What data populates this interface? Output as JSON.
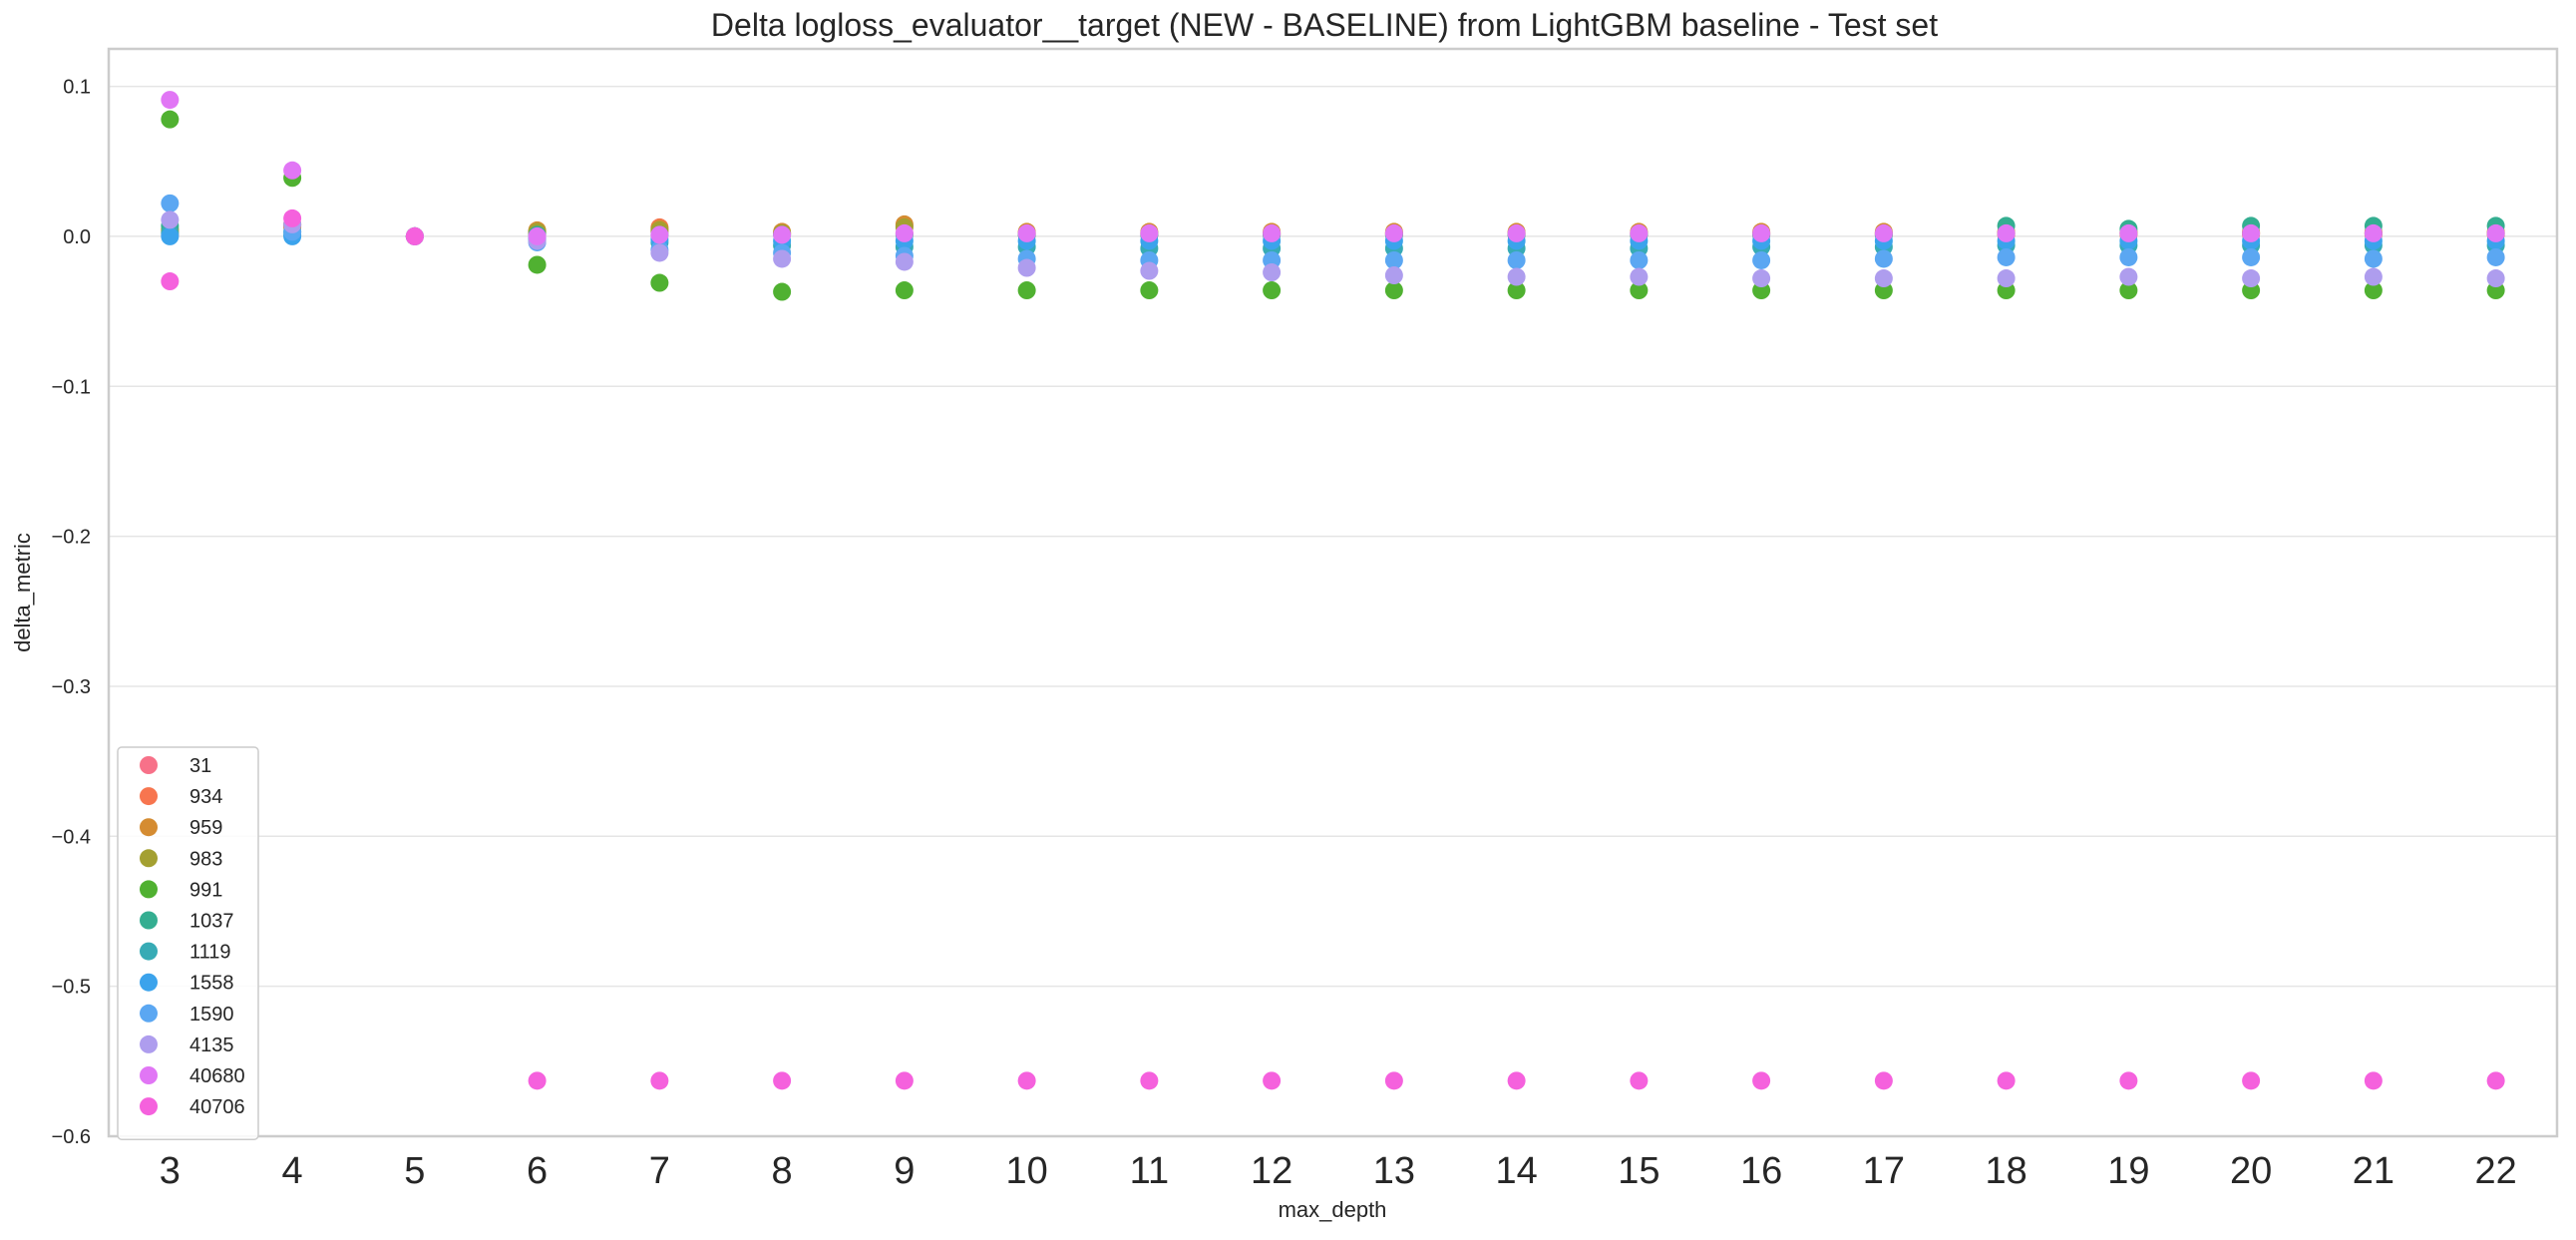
{
  "chart_data": {
    "type": "scatter",
    "title": "Delta logloss_evaluator__target (NEW - BASELINE) from LightGBM baseline - Test set",
    "xlabel": "max_depth",
    "ylabel": "delta_metric",
    "categories": [
      "3",
      "4",
      "5",
      "6",
      "7",
      "8",
      "9",
      "10",
      "11",
      "12",
      "13",
      "14",
      "15",
      "16",
      "17",
      "18",
      "19",
      "20",
      "21",
      "22"
    ],
    "ylim": [
      -0.6,
      0.125
    ],
    "yticks": [
      0.1,
      0.0,
      -0.1,
      -0.2,
      -0.3,
      -0.4,
      -0.5,
      -0.6
    ],
    "ytick_labels": [
      "0.1",
      "0.0",
      "−0.1",
      "−0.2",
      "−0.3",
      "−0.4",
      "−0.5",
      "−0.6"
    ],
    "grid": "horizontal",
    "legend_position": "lower-left",
    "series": [
      {
        "name": "31",
        "color": "#f77189",
        "values": [
          0.001,
          0.008,
          0.0,
          0.002,
          0.003,
          0.002,
          0.002,
          0.001,
          0.001,
          0.001,
          0.001,
          0.001,
          0.001,
          0.001,
          0.001,
          0.001,
          0.001,
          0.001,
          0.001,
          0.001
        ]
      },
      {
        "name": "934",
        "color": "#f7754f",
        "values": [
          0.003,
          0.007,
          0.0,
          0.003,
          0.006,
          0.002,
          0.007,
          0.002,
          0.002,
          0.002,
          0.002,
          0.002,
          0.002,
          0.002,
          0.002,
          0.002,
          0.002,
          0.002,
          0.002,
          0.002
        ]
      },
      {
        "name": "959",
        "color": "#d58c32",
        "values": [
          0.004,
          0.006,
          0.0,
          0.004,
          0.005,
          0.003,
          0.008,
          0.003,
          0.003,
          0.003,
          0.003,
          0.003,
          0.003,
          0.003,
          0.003,
          0.003,
          0.003,
          0.003,
          0.003,
          0.003
        ]
      },
      {
        "name": "983",
        "color": "#a4a031",
        "values": [
          0.005,
          0.008,
          0.0,
          0.003,
          0.004,
          0.002,
          0.006,
          0.002,
          0.002,
          0.002,
          0.002,
          0.002,
          0.002,
          0.002,
          0.002,
          0.002,
          0.002,
          0.002,
          0.002,
          0.002
        ]
      },
      {
        "name": "991",
        "color": "#50b131",
        "values": [
          0.078,
          0.039,
          0.0,
          -0.019,
          -0.031,
          -0.037,
          -0.036,
          -0.036,
          -0.036,
          -0.036,
          -0.036,
          -0.036,
          -0.036,
          -0.036,
          -0.036,
          -0.036,
          -0.036,
          -0.036,
          -0.036,
          -0.036
        ]
      },
      {
        "name": "1037",
        "color": "#34ae91",
        "values": [
          0.007,
          0.003,
          0.0,
          0.001,
          0.001,
          0.001,
          0.001,
          0.001,
          0.001,
          0.001,
          0.001,
          0.001,
          0.001,
          0.001,
          0.001,
          0.007,
          0.005,
          0.007,
          0.007,
          0.007
        ]
      },
      {
        "name": "1119",
        "color": "#37abb5",
        "values": [
          0.002,
          0.001,
          0.0,
          -0.002,
          -0.004,
          -0.006,
          -0.007,
          -0.007,
          -0.008,
          -0.008,
          -0.008,
          -0.008,
          -0.008,
          -0.007,
          -0.007,
          -0.006,
          -0.006,
          -0.006,
          -0.006,
          -0.006
        ]
      },
      {
        "name": "1558",
        "color": "#3ba3ec",
        "values": [
          0.0,
          0.0,
          0.0,
          -0.001,
          -0.002,
          -0.003,
          -0.003,
          -0.003,
          -0.003,
          -0.003,
          -0.003,
          -0.003,
          -0.003,
          -0.003,
          -0.003,
          -0.003,
          -0.003,
          -0.003,
          -0.003,
          -0.003
        ]
      },
      {
        "name": "1590",
        "color": "#5ba7f2",
        "values": [
          0.022,
          0.003,
          0.0,
          -0.004,
          -0.009,
          -0.011,
          -0.013,
          -0.015,
          -0.016,
          -0.016,
          -0.016,
          -0.016,
          -0.016,
          -0.016,
          -0.015,
          -0.014,
          -0.014,
          -0.014,
          -0.015,
          -0.014
        ]
      },
      {
        "name": "4135",
        "color": "#ae9dee",
        "values": [
          0.011,
          0.008,
          0.0,
          -0.003,
          -0.011,
          -0.015,
          -0.017,
          -0.021,
          -0.023,
          -0.024,
          -0.026,
          -0.027,
          -0.027,
          -0.028,
          -0.028,
          -0.028,
          -0.027,
          -0.028,
          -0.027,
          -0.028
        ]
      },
      {
        "name": "40680",
        "color": "#e176f5",
        "values": [
          0.091,
          0.044,
          0.0,
          0.0,
          0.001,
          0.001,
          0.002,
          0.002,
          0.002,
          0.002,
          0.002,
          0.002,
          0.002,
          0.002,
          0.002,
          0.002,
          0.002,
          0.002,
          0.002,
          0.002
        ]
      },
      {
        "name": "40706",
        "color": "#f561dd",
        "values": [
          -0.03,
          0.012,
          0.0,
          -0.563,
          -0.563,
          -0.563,
          -0.563,
          -0.563,
          -0.563,
          -0.563,
          -0.563,
          -0.563,
          -0.563,
          -0.563,
          -0.563,
          -0.563,
          -0.563,
          -0.563,
          -0.563,
          -0.563
        ]
      }
    ]
  }
}
